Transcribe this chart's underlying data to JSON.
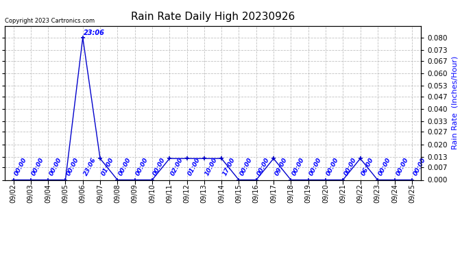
{
  "title": "Rain Rate Daily High 20230926",
  "ylabel_right": "Rain Rate  (Inches/Hour)",
  "copyright": "Copyright 2023 Cartronics.com",
  "line_color": "#0000cc",
  "background_color": "#ffffff",
  "grid_color": "#b0b0b0",
  "ylim": [
    0.0,
    0.0867
  ],
  "yticks": [
    0.0,
    0.007,
    0.013,
    0.02,
    0.027,
    0.033,
    0.04,
    0.047,
    0.053,
    0.06,
    0.067,
    0.073,
    0.08
  ],
  "data": [
    {
      "date": "09/02",
      "time": "00:00",
      "value": 0.0
    },
    {
      "date": "09/03",
      "time": "00:00",
      "value": 0.0
    },
    {
      "date": "09/04",
      "time": "00:00",
      "value": 0.0
    },
    {
      "date": "09/05",
      "time": "00:00",
      "value": 0.0
    },
    {
      "date": "09/06",
      "time": "23:06",
      "value": 0.08
    },
    {
      "date": "09/07",
      "time": "01:00",
      "value": 0.012
    },
    {
      "date": "09/08",
      "time": "00:00",
      "value": 0.0
    },
    {
      "date": "09/09",
      "time": "00:00",
      "value": 0.0
    },
    {
      "date": "09/10",
      "time": "00:00",
      "value": 0.0
    },
    {
      "date": "09/11",
      "time": "02:00",
      "value": 0.012
    },
    {
      "date": "09/12",
      "time": "01:00",
      "value": 0.012
    },
    {
      "date": "09/13",
      "time": "10:00",
      "value": 0.012
    },
    {
      "date": "09/14",
      "time": "17:00",
      "value": 0.012
    },
    {
      "date": "09/15",
      "time": "00:00",
      "value": 0.0
    },
    {
      "date": "09/16",
      "time": "00:00",
      "value": 0.0
    },
    {
      "date": "09/17",
      "time": "09:00",
      "value": 0.012
    },
    {
      "date": "09/18",
      "time": "00:00",
      "value": 0.0
    },
    {
      "date": "09/19",
      "time": "00:00",
      "value": 0.0
    },
    {
      "date": "09/20",
      "time": "00:00",
      "value": 0.0
    },
    {
      "date": "09/21",
      "time": "00:00",
      "value": 0.0
    },
    {
      "date": "09/22",
      "time": "06:00",
      "value": 0.012
    },
    {
      "date": "09/23",
      "time": "00:00",
      "value": 0.0
    },
    {
      "date": "09/24",
      "time": "00:00",
      "value": 0.0
    },
    {
      "date": "09/25",
      "time": "00:00",
      "value": 0.0
    }
  ]
}
